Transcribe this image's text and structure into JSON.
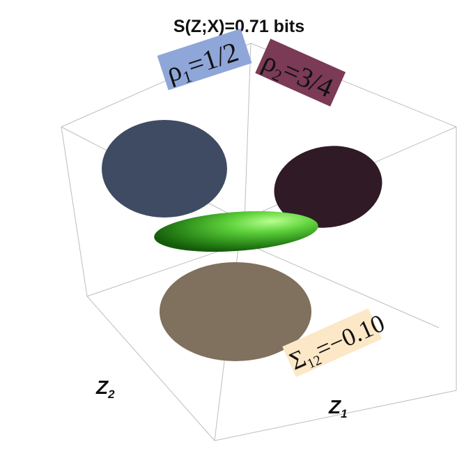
{
  "figure": {
    "title": "S(Z;X)=0.71 bits",
    "labels": {
      "rho1": {
        "symbol": "ρ",
        "sub": "1",
        "rest": "=1/2",
        "color": "#8fa6d8"
      },
      "rho2": {
        "symbol": "ρ",
        "sub": "2",
        "rest": "=3/4",
        "color": "#7b3a55"
      },
      "sigma12": {
        "symbol": "Σ",
        "sub": "12",
        "rest": "=−0.10",
        "color": "#fce7c6"
      }
    },
    "axes": {
      "z1": {
        "main": "Z",
        "sub": "1"
      },
      "z2": {
        "main": "Z",
        "sub": "2"
      }
    },
    "colors": {
      "rho1_ellipse": "#3f4b63",
      "rho2_ellipse": "#2f1a25",
      "sigma_ellipse": "#80705e",
      "ellipsoid": "#3fae2c",
      "box_edges": "#bdbdbd"
    }
  }
}
